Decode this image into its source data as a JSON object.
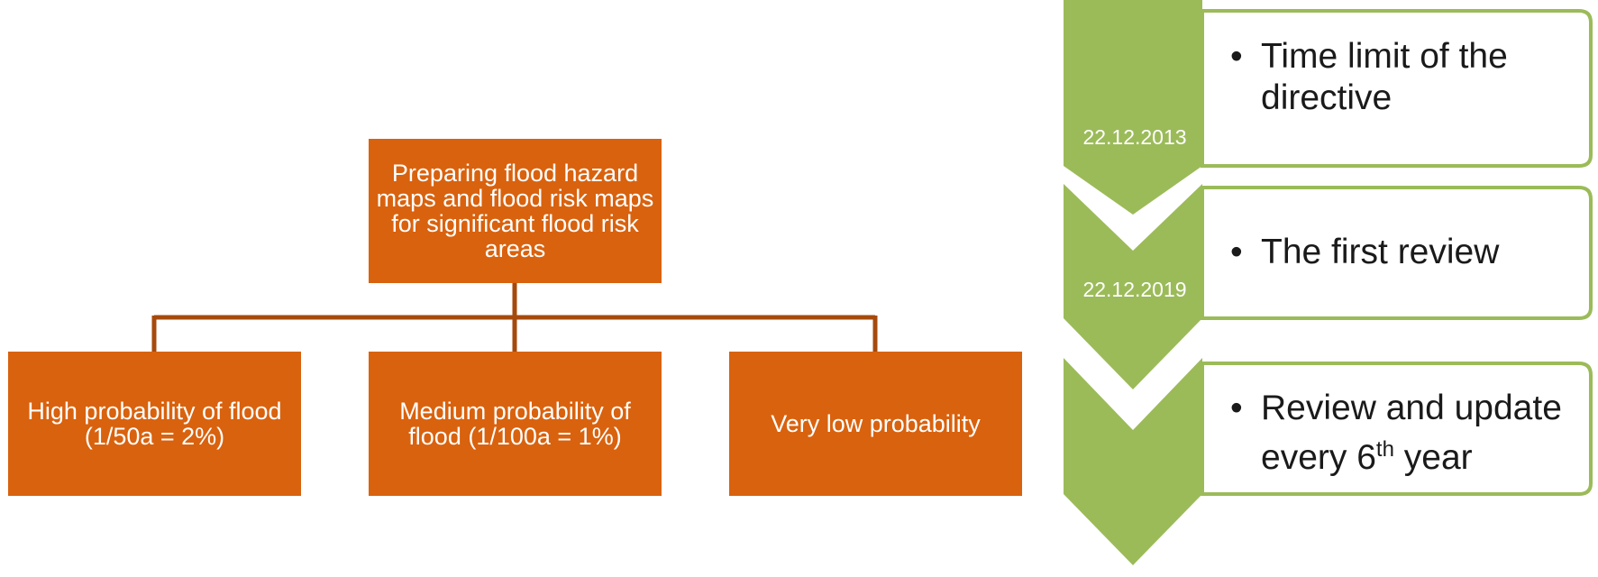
{
  "hierarchy": {
    "root": "Preparing flood hazard maps and flood risk maps for significant flood risk areas",
    "children": [
      "High probability of flood (1/50a = 2%)",
      "Medium probability of flood (1/100a = 1%)",
      "Very low probability"
    ]
  },
  "timeline": {
    "steps": [
      {
        "date": "22.12.2013",
        "bullet": "•",
        "text": "Time limit of the directive"
      },
      {
        "date": "22.12.2019",
        "bullet": "•",
        "text": "The first review"
      },
      {
        "date": "",
        "bullet": "•",
        "text_before": "Review and update every 6",
        "superscript": "th",
        "text_after": " year"
      }
    ]
  },
  "colors": {
    "orange": "#d9620e",
    "connector": "#a64a0c",
    "green": "#9bbb59",
    "text_dark": "#1a1a1a",
    "white": "#ffffff"
  }
}
